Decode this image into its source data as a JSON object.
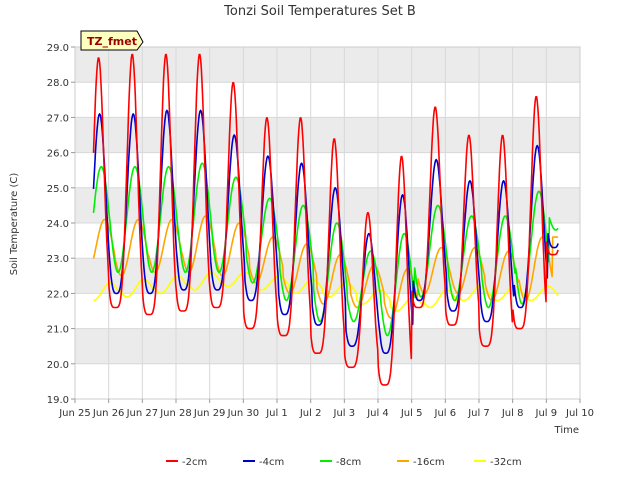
{
  "chart_data": {
    "type": "line",
    "title": "Tonzi Soil Temperatures Set B",
    "xlabel": "Time",
    "ylabel": "Soil Temperature (C)",
    "badge": "TZ_fmet",
    "ylim": [
      19.0,
      29.0
    ],
    "xlim": [
      0,
      15
    ],
    "y_ticks": [
      "19.0",
      "20.0",
      "21.0",
      "22.0",
      "23.0",
      "24.0",
      "25.0",
      "26.0",
      "27.0",
      "28.0",
      "29.0"
    ],
    "x_tick_labels": [
      "Jun 25",
      "Jun 26",
      "Jun 27",
      "Jun 28",
      "Jun 29",
      "Jun 30",
      "Jul 1",
      "Jul 2",
      "Jul 3",
      "Jul 4",
      "Jul 5",
      "Jul 6",
      "Jul 7",
      "Jul 8",
      "Jul 9",
      "Jul 10"
    ],
    "grid": true,
    "band_fill": "#ebebeb",
    "legend_position": "bottom",
    "series": [
      {
        "name": "-2cm",
        "color": "#ff0000",
        "day_min": [
          21.9,
          21.6,
          21.4,
          21.5,
          21.6,
          21.0,
          20.8,
          20.3,
          19.9,
          19.4,
          21.6,
          21.1,
          20.5,
          21.0,
          23.1
        ],
        "day_max": [
          28.7,
          28.8,
          28.8,
          28.8,
          28.0,
          27.0,
          27.0,
          26.4,
          24.3,
          25.9,
          27.3,
          26.5,
          26.5,
          27.6,
          27.5
        ]
      },
      {
        "name": "-4cm",
        "color": "#0000cc",
        "day_min": [
          22.0,
          22.0,
          22.0,
          22.1,
          22.1,
          21.8,
          21.4,
          21.1,
          20.5,
          20.3,
          21.8,
          21.5,
          21.2,
          21.6,
          23.3
        ],
        "day_max": [
          27.1,
          27.1,
          27.2,
          27.2,
          26.5,
          25.9,
          25.7,
          25.0,
          23.7,
          24.8,
          25.8,
          25.2,
          25.2,
          26.2,
          26.2
        ]
      },
      {
        "name": "-8cm",
        "color": "#00ee00",
        "day_min": [
          22.6,
          22.6,
          22.6,
          22.6,
          22.6,
          22.3,
          21.8,
          21.2,
          21.2,
          20.8,
          21.9,
          21.8,
          21.6,
          21.7,
          23.8
        ],
        "day_max": [
          25.6,
          25.6,
          25.6,
          25.7,
          25.3,
          24.7,
          24.5,
          24.0,
          23.2,
          23.7,
          24.5,
          24.2,
          24.2,
          24.9,
          24.9
        ]
      },
      {
        "name": "-16cm",
        "color": "#ffa500",
        "day_min": [
          22.6,
          22.5,
          22.6,
          22.6,
          22.5,
          22.3,
          22.0,
          21.7,
          21.6,
          21.3,
          22.0,
          22.0,
          21.8,
          21.8,
          23.6
        ],
        "day_max": [
          24.1,
          24.1,
          24.1,
          24.2,
          24.0,
          23.6,
          23.4,
          23.1,
          22.8,
          22.7,
          23.3,
          23.3,
          23.2,
          23.6,
          23.6
        ]
      },
      {
        "name": "-32cm",
        "color": "#ffff00",
        "day_min": [
          21.8,
          21.9,
          22.0,
          22.1,
          22.2,
          22.1,
          22.0,
          21.9,
          21.7,
          21.5,
          21.6,
          21.8,
          21.8,
          21.8,
          22.2
        ],
        "day_max": [
          22.3,
          22.4,
          22.5,
          22.6,
          22.6,
          22.5,
          22.4,
          22.3,
          22.1,
          21.9,
          22.1,
          22.2,
          22.2,
          22.2,
          22.2
        ]
      }
    ]
  }
}
